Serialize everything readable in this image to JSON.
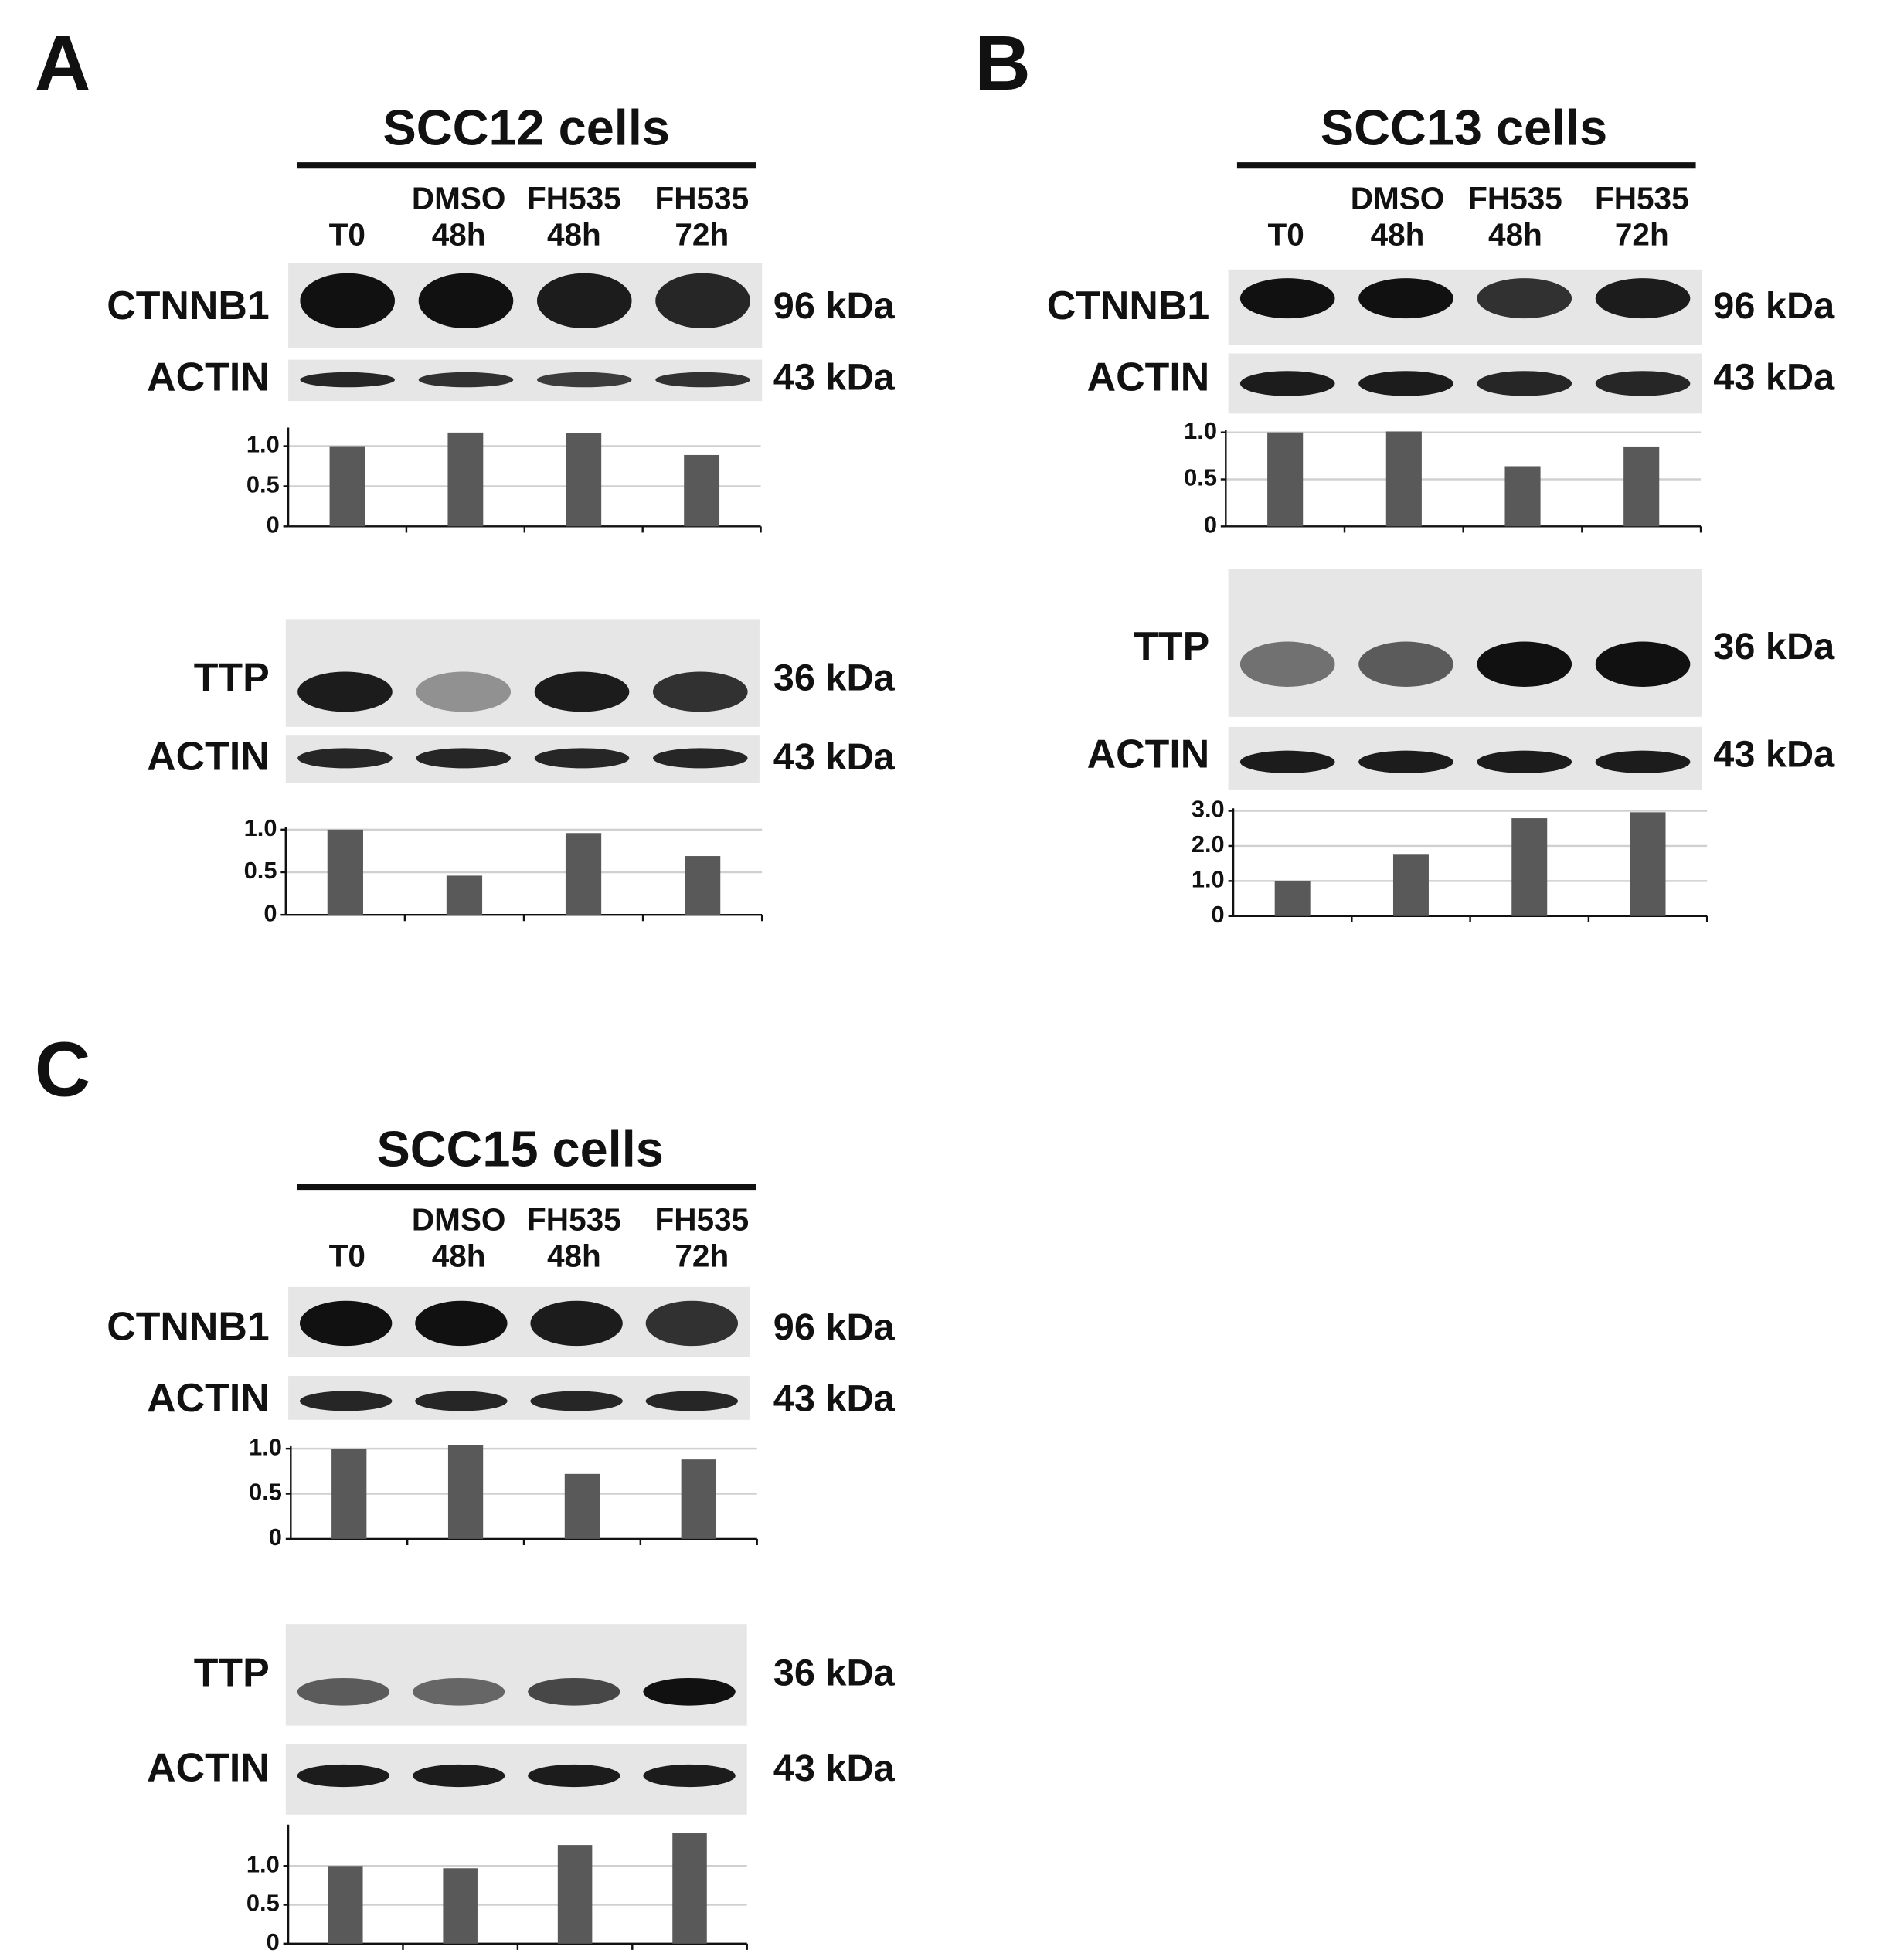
{
  "panels": [
    {
      "letter": "A",
      "title": "SCC12 cells",
      "lanes": [
        [
          "T0"
        ],
        [
          "DMSO",
          "48h"
        ],
        [
          "FH535",
          "48h"
        ],
        [
          "FH535",
          "72h"
        ]
      ],
      "blots": [
        {
          "name": "CTNNB1",
          "size": "96 kDa"
        },
        {
          "name": "ACTIN",
          "size": "43 kDa"
        },
        {
          "name": "TTP",
          "size": "36 kDa"
        },
        {
          "name": "ACTIN",
          "size": "43 kDa"
        }
      ]
    },
    {
      "letter": "B",
      "title": "SCC13 cells",
      "lanes": [
        [
          "T0"
        ],
        [
          "DMSO",
          "48h"
        ],
        [
          "FH535",
          "48h"
        ],
        [
          "FH535",
          "72h"
        ]
      ],
      "blots": [
        {
          "name": "CTNNB1",
          "size": "96 kDa"
        },
        {
          "name": "ACTIN",
          "size": "43 kDa"
        },
        {
          "name": "TTP",
          "size": "36 kDa"
        },
        {
          "name": "ACTIN",
          "size": "43 kDa"
        }
      ]
    },
    {
      "letter": "C",
      "title": "SCC15 cells",
      "lanes": [
        [
          "T0"
        ],
        [
          "DMSO",
          "48h"
        ],
        [
          "FH535",
          "48h"
        ],
        [
          "FH535",
          "72h"
        ]
      ],
      "blots": [
        {
          "name": "CTNNB1",
          "size": "96 kDa"
        },
        {
          "name": "ACTIN",
          "size": "43 kDa"
        },
        {
          "name": "TTP",
          "size": "36 kDa"
        },
        {
          "name": "ACTIN",
          "size": "43 kDa"
        }
      ]
    }
  ],
  "chart_data": [
    {
      "type": "bar",
      "values": [
        1.0,
        1.17,
        1.16,
        0.89
      ],
      "color": "#595959",
      "ylim": [
        0,
        1.2
      ],
      "yticks": [
        0,
        0.5,
        {
          "value": 1,
          "label": "1.0"
        }
      ],
      "grid": true
    },
    {
      "type": "bar",
      "values": [
        1.0,
        0.46,
        0.96,
        0.69
      ],
      "color": "#595959",
      "ylim": [
        0,
        1
      ],
      "yticks": [
        0,
        0.5,
        {
          "value": 1,
          "label": "1.0"
        }
      ],
      "grid": true
    },
    {
      "type": "bar",
      "values": [
        1.0,
        1.01,
        0.64,
        0.85
      ],
      "color": "#595959",
      "ylim": [
        0,
        1
      ],
      "yticks": [
        0,
        0.5,
        {
          "value": 1,
          "label": "1.0"
        }
      ],
      "grid": true
    },
    {
      "type": "bar",
      "values": [
        1.0,
        1.75,
        2.79,
        2.96
      ],
      "color": "#595959",
      "ylim": [
        0,
        3
      ],
      "yticks": [
        0,
        {
          "value": 1,
          "label": "1.0"
        },
        {
          "value": 2,
          "label": "2.0"
        },
        {
          "value": 3,
          "label": "3.0"
        }
      ],
      "grid": true
    },
    {
      "type": "bar",
      "values": [
        1.0,
        1.04,
        0.72,
        0.88
      ],
      "color": "#595959",
      "ylim": [
        0,
        1
      ],
      "yticks": [
        0,
        0.5,
        {
          "value": 1,
          "label": "1.0"
        }
      ],
      "grid": true
    },
    {
      "type": "bar",
      "values": [
        1.0,
        0.97,
        1.27,
        1.42
      ],
      "color": "#595959",
      "ylim": [
        0,
        1.5
      ],
      "yticks": [
        0,
        0.5,
        {
          "value": 1,
          "label": "1.0"
        }
      ],
      "grid": true
    }
  ]
}
